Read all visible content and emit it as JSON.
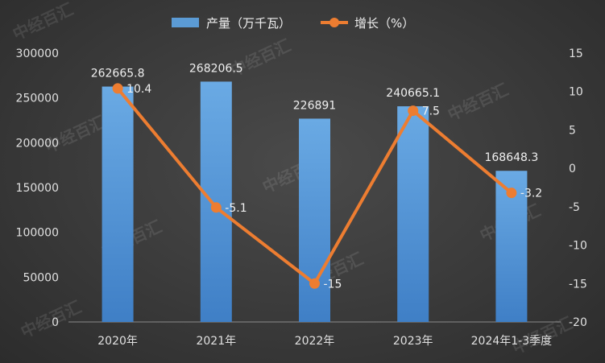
{
  "chart_data": {
    "type": "bar+line",
    "categories": [
      "2020年",
      "2021年",
      "2022年",
      "2023年",
      "2024年1-3季度"
    ],
    "series": [
      {
        "name": "产量（万千瓦）",
        "type": "bar",
        "axis": "left",
        "values": [
          262665.8,
          268206.5,
          226891,
          240665.1,
          168648.3
        ],
        "labels": [
          "262665.8",
          "268206.5",
          "226891",
          "240665.1",
          "168648.3"
        ],
        "color": "#5b9bd5"
      },
      {
        "name": "增长（%）",
        "type": "line",
        "axis": "right",
        "values": [
          10.4,
          -5.1,
          -15,
          7.5,
          -3.2
        ],
        "labels": [
          "10.4",
          "-5.1",
          "-15",
          "7.5",
          "-3.2"
        ],
        "color": "#ed7d31"
      }
    ],
    "y_left": {
      "ylim": [
        0,
        300000
      ],
      "ticks": [
        "0",
        "50000",
        "100000",
        "150000",
        "200000",
        "250000",
        "300000"
      ]
    },
    "y_right": {
      "ylim": [
        -20,
        15
      ],
      "ticks": [
        "-20",
        "-15",
        "-10",
        "-5",
        "0",
        "5",
        "10",
        "15"
      ]
    },
    "legend_position": "top-center",
    "grid": false,
    "watermark": "中经百汇"
  }
}
